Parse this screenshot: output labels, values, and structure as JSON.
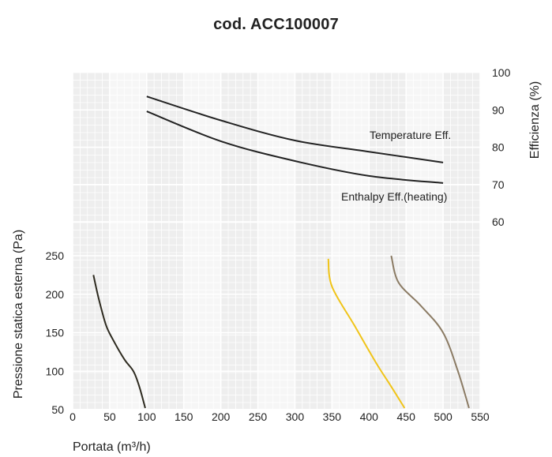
{
  "chart_data": {
    "type": "line",
    "title": "cod. ACC100007",
    "xlabel": "Portata (m³/h)",
    "ylabel_left": "Pressione statica esterna (Pa)",
    "ylabel_right": "Efficienza (%)",
    "xlim": [
      0,
      550
    ],
    "x_ticks": [
      "0",
      "50",
      "100",
      "150",
      "200",
      "250",
      "300",
      "350",
      "400",
      "450",
      "500",
      "550"
    ],
    "ylim_left": [
      50,
      250
    ],
    "y_ticks_left": [
      "50",
      "100",
      "150",
      "200",
      "250"
    ],
    "ylim_right": [
      50,
      100
    ],
    "y_ticks_right": [
      "60",
      "70",
      "80",
      "90",
      "100"
    ],
    "grid": true,
    "pressure_series": [
      {
        "color": "#2d2a1f",
        "x": [
          28,
          35,
          45,
          55,
          70,
          82,
          90,
          98
        ],
        "y": [
          225,
          195,
          160,
          140,
          115,
          100,
          80,
          52
        ]
      },
      {
        "color": "#f0c419",
        "x": [
          345,
          350,
          380,
          410,
          430,
          448
        ],
        "y": [
          246,
          210,
          160,
          110,
          80,
          52
        ]
      },
      {
        "color": "#8b7b64",
        "x": [
          430,
          440,
          470,
          500,
          520,
          535
        ],
        "y": [
          250,
          215,
          185,
          150,
          100,
          52
        ]
      }
    ],
    "efficiency_series": [
      {
        "name": "Temperature Eff.",
        "color": "#222222",
        "x": [
          100,
          200,
          300,
          400,
          500
        ],
        "y": [
          93.6,
          87.2,
          81.8,
          78.8,
          75.9
        ]
      },
      {
        "name": "Enthalpy Eff.(heating)",
        "color": "#222222",
        "x": [
          100,
          200,
          300,
          400,
          500
        ],
        "y": [
          89.6,
          81.6,
          76.3,
          72.3,
          70.4
        ]
      }
    ]
  }
}
